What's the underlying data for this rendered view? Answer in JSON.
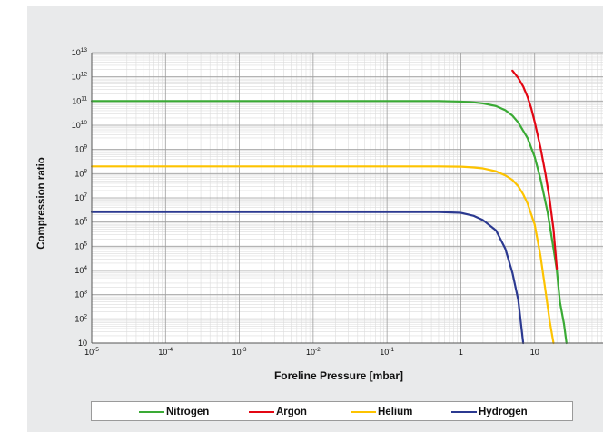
{
  "chart_data": {
    "type": "line",
    "title": "",
    "xlabel": "Foreline Pressure [mbar]",
    "ylabel": "Compression ratio",
    "x_scale": "log",
    "y_scale": "log",
    "xlim": [
      1e-05,
      100
    ],
    "ylim": [
      10,
      10000000000000
    ],
    "grid": true,
    "legend_position": "bottom",
    "x_ticks": [
      {
        "base": "10",
        "exp": "-5"
      },
      {
        "base": "10",
        "exp": "-4"
      },
      {
        "base": "10",
        "exp": "-3"
      },
      {
        "base": "10",
        "exp": "-2"
      },
      {
        "base": "10",
        "exp": "-1"
      },
      {
        "base": "1",
        "exp": ""
      },
      {
        "base": "10",
        "exp": ""
      },
      {
        "base": "10",
        "exp": ""
      }
    ],
    "y_ticks": [
      {
        "base": "10",
        "exp": ""
      },
      {
        "base": "10",
        "exp": "2"
      },
      {
        "base": "10",
        "exp": "3"
      },
      {
        "base": "10",
        "exp": "4"
      },
      {
        "base": "10",
        "exp": "5"
      },
      {
        "base": "10",
        "exp": "6"
      },
      {
        "base": "10",
        "exp": "7"
      },
      {
        "base": "10",
        "exp": "8"
      },
      {
        "base": "10",
        "exp": "9"
      },
      {
        "base": "10",
        "exp": "10"
      },
      {
        "base": "10",
        "exp": "11"
      },
      {
        "base": "10",
        "exp": "12"
      },
      {
        "base": "10",
        "exp": "13"
      }
    ],
    "series": [
      {
        "name": "Nitrogen",
        "color": "#3aaa35",
        "x": [
          1e-05,
          0.0001,
          0.001,
          0.01,
          0.1,
          0.5,
          1,
          1.5,
          2,
          3,
          4,
          5,
          6,
          8,
          10,
          12,
          15,
          18,
          20,
          22,
          25,
          27
        ],
        "y": [
          100000000000,
          100000000000,
          100000000000,
          100000000000,
          100000000000,
          100000000000,
          95000000000,
          88000000000,
          80000000000,
          62000000000,
          42000000000,
          25000000000,
          13000000000,
          3000000000,
          500000000,
          60000000,
          2500000,
          80000,
          10000,
          500,
          60,
          10
        ]
      },
      {
        "name": "Argon",
        "color": "#e30613",
        "x": [
          5,
          6,
          7,
          8,
          9,
          10,
          12,
          14,
          16,
          18,
          20
        ],
        "y": [
          1800000000000,
          900000000000,
          400000000000,
          150000000000,
          50000000000,
          14000000000,
          1200000000,
          100000000,
          8000000,
          500000,
          12000
        ]
      },
      {
        "name": "Helium",
        "color": "#fdc300",
        "x": [
          1e-05,
          0.0001,
          0.001,
          0.01,
          0.1,
          0.5,
          1,
          1.5,
          2,
          3,
          4,
          5,
          6,
          7,
          8,
          10,
          12,
          14,
          16,
          18
        ],
        "y": [
          200000000,
          200000000,
          200000000,
          200000000,
          200000000,
          200000000,
          195000000,
          180000000,
          165000000,
          125000000,
          85000000,
          55000000,
          30000000,
          14000000,
          6000000,
          800000,
          40000,
          1500,
          80,
          10
        ]
      },
      {
        "name": "Hydrogen",
        "color": "#2b3990",
        "x": [
          1e-05,
          0.0001,
          0.001,
          0.01,
          0.1,
          0.5,
          1,
          1.5,
          2,
          3,
          4,
          5,
          6,
          7
        ],
        "y": [
          2600000,
          2600000,
          2600000,
          2600000,
          2600000,
          2600000,
          2400000,
          1800000,
          1200000,
          450000,
          80000,
          8000,
          600,
          10
        ]
      }
    ]
  }
}
